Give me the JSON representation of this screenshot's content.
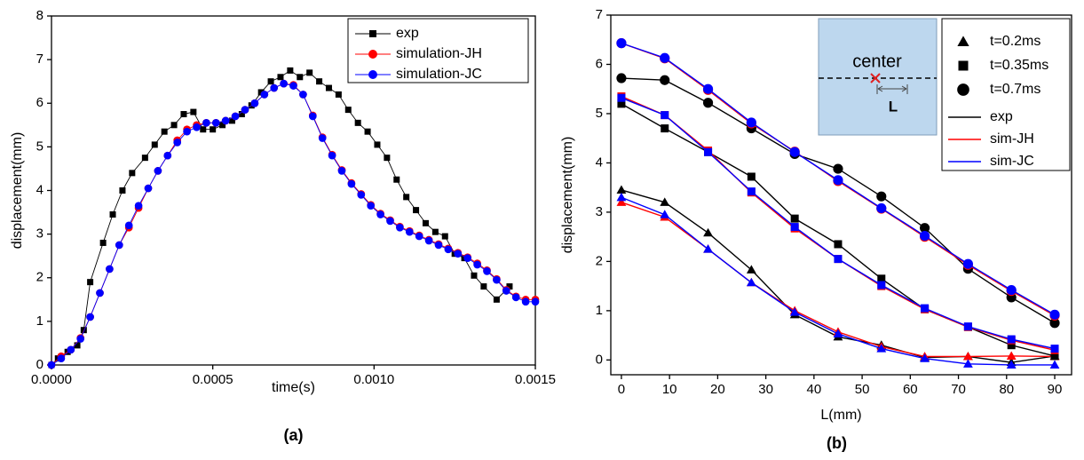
{
  "chart_data": [
    {
      "type": "line",
      "caption": "(a)",
      "xlabel": "time(s)",
      "ylabel": "displacement(mm)",
      "xlim": [
        0,
        0.0015
      ],
      "ylim": [
        0,
        8
      ],
      "xticks": [
        {
          "value": 0,
          "label": "0.0000"
        },
        {
          "value": 0.0005,
          "label": "0.0005"
        },
        {
          "value": 0.001,
          "label": "0.0010"
        },
        {
          "value": 0.0015,
          "label": "0.0015"
        }
      ],
      "yticks": [
        0,
        1,
        2,
        3,
        4,
        5,
        6,
        7,
        8
      ],
      "legend": "upper right",
      "series": [
        {
          "name": "exp",
          "color": "#000000",
          "marker": "square",
          "x": [
            0,
            2e-05,
            5e-05,
            8e-05,
            0.0001,
            0.00012,
            0.00016,
            0.00019,
            0.00022,
            0.00025,
            0.00029,
            0.00032,
            0.00035,
            0.00038,
            0.00041,
            0.00044,
            0.00047,
            0.0005,
            0.00053,
            0.00056,
            0.00059,
            0.00062,
            0.00065,
            0.00068,
            0.00071,
            0.00074,
            0.00077,
            0.0008,
            0.00083,
            0.00086,
            0.00089,
            0.00092,
            0.00095,
            0.00098,
            0.00101,
            0.00104,
            0.00107,
            0.0011,
            0.00113,
            0.00116,
            0.00119,
            0.00122,
            0.00125,
            0.00128,
            0.00131,
            0.00134,
            0.00138,
            0.00142
          ],
          "values": [
            0,
            0.15,
            0.3,
            0.45,
            0.8,
            1.9,
            2.8,
            3.45,
            4.0,
            4.4,
            4.75,
            5.05,
            5.35,
            5.5,
            5.75,
            5.8,
            5.4,
            5.4,
            5.5,
            5.6,
            5.75,
            5.95,
            6.25,
            6.5,
            6.6,
            6.75,
            6.6,
            6.7,
            6.5,
            6.35,
            6.2,
            5.85,
            5.55,
            5.35,
            5.05,
            4.75,
            4.25,
            3.85,
            3.55,
            3.25,
            3.05,
            2.95,
            2.55,
            2.45,
            2.05,
            1.8,
            1.5,
            1.8
          ]
        },
        {
          "name": "simulation-JH",
          "color": "#ff0000",
          "marker": "circle",
          "x": [
            0,
            3e-05,
            6e-05,
            9e-05,
            0.00012,
            0.00015,
            0.00018,
            0.00021,
            0.00024,
            0.00027,
            0.0003,
            0.00033,
            0.00036,
            0.00039,
            0.00042,
            0.00045,
            0.00048,
            0.00051,
            0.00054,
            0.00057,
            0.0006,
            0.00063,
            0.00066,
            0.00069,
            0.00072,
            0.00075,
            0.00078,
            0.00081,
            0.00084,
            0.00087,
            0.0009,
            0.00093,
            0.00096,
            0.00099,
            0.00102,
            0.00105,
            0.00108,
            0.00111,
            0.00114,
            0.00117,
            0.0012,
            0.00123,
            0.00126,
            0.00129,
            0.00132,
            0.00135,
            0.00138,
            0.00141,
            0.00144,
            0.00147,
            0.0015
          ],
          "values": [
            0,
            0.2,
            0.35,
            0.62,
            1.1,
            1.65,
            2.2,
            2.75,
            3.15,
            3.6,
            4.05,
            4.45,
            4.8,
            5.15,
            5.4,
            5.5,
            5.55,
            5.55,
            5.6,
            5.7,
            5.85,
            6.0,
            6.2,
            6.35,
            6.45,
            6.42,
            6.2,
            5.72,
            5.22,
            4.82,
            4.47,
            4.17,
            3.92,
            3.67,
            3.47,
            3.32,
            3.17,
            3.07,
            2.97,
            2.87,
            2.77,
            2.67,
            2.57,
            2.47,
            2.33,
            2.17,
            1.97,
            1.72,
            1.57,
            1.5,
            1.5
          ]
        },
        {
          "name": "simulation-JC",
          "color": "#0000ff",
          "marker": "circle",
          "x": [
            0,
            3e-05,
            6e-05,
            9e-05,
            0.00012,
            0.00015,
            0.00018,
            0.00021,
            0.00024,
            0.00027,
            0.0003,
            0.00033,
            0.00036,
            0.00039,
            0.00042,
            0.00045,
            0.00048,
            0.00051,
            0.00054,
            0.00057,
            0.0006,
            0.00063,
            0.00066,
            0.00069,
            0.00072,
            0.00075,
            0.00078,
            0.00081,
            0.00084,
            0.00087,
            0.0009,
            0.00093,
            0.00096,
            0.00099,
            0.00102,
            0.00105,
            0.00108,
            0.00111,
            0.00114,
            0.00117,
            0.0012,
            0.00123,
            0.00126,
            0.00129,
            0.00132,
            0.00135,
            0.00138,
            0.00141,
            0.00144,
            0.00147,
            0.0015
          ],
          "values": [
            0,
            0.15,
            0.35,
            0.6,
            1.1,
            1.65,
            2.2,
            2.75,
            3.2,
            3.65,
            4.05,
            4.45,
            4.8,
            5.1,
            5.35,
            5.45,
            5.55,
            5.55,
            5.6,
            5.7,
            5.85,
            6.0,
            6.2,
            6.35,
            6.45,
            6.4,
            6.2,
            5.7,
            5.2,
            4.8,
            4.45,
            4.15,
            3.9,
            3.65,
            3.45,
            3.3,
            3.15,
            3.05,
            2.95,
            2.85,
            2.75,
            2.65,
            2.55,
            2.45,
            2.3,
            2.15,
            1.95,
            1.7,
            1.55,
            1.45,
            1.45
          ]
        }
      ]
    },
    {
      "type": "line",
      "caption": "(b)",
      "xlabel": "L(mm)",
      "ylabel": "displacement(mm)",
      "xlim": [
        -2.2,
        93.5
      ],
      "ylim": [
        -0.3,
        7
      ],
      "xticks": [
        0,
        10,
        20,
        30,
        40,
        50,
        60,
        70,
        80,
        90
      ],
      "yticks": [
        0,
        1,
        2,
        3,
        4,
        5,
        6,
        7
      ],
      "legend": "upper right",
      "inset": {
        "label": "center",
        "dim_label": "L"
      },
      "x": [
        0,
        9,
        18,
        27,
        36,
        45,
        54,
        63,
        72,
        81,
        90
      ],
      "models": [
        {
          "name": "exp",
          "color": "#000000"
        },
        {
          "name": "sim-JH",
          "color": "#ff0000"
        },
        {
          "name": "sim-JC",
          "color": "#0000ff"
        }
      ],
      "groups": [
        {
          "label": "t=0.2ms",
          "marker": "triangle",
          "series": [
            [
              3.45,
              3.2,
              2.58,
              1.83,
              0.92,
              0.47,
              0.3,
              0.05,
              0.07,
              -0.05,
              0.08
            ],
            [
              3.2,
              2.9,
              2.25,
              1.57,
              1.0,
              0.57,
              0.27,
              0.07,
              0.07,
              0.08,
              0.07
            ],
            [
              3.3,
              2.95,
              2.25,
              1.57,
              0.97,
              0.53,
              0.23,
              0.03,
              -0.08,
              -0.1,
              -0.1
            ]
          ]
        },
        {
          "label": "t=0.35ms",
          "marker": "square",
          "series": [
            [
              5.2,
              4.7,
              4.22,
              3.72,
              2.87,
              2.35,
              1.65,
              1.03,
              0.67,
              0.3,
              0.08
            ],
            [
              5.35,
              4.97,
              4.25,
              3.4,
              2.67,
              2.05,
              1.5,
              1.03,
              0.67,
              0.4,
              0.2
            ],
            [
              5.32,
              4.97,
              4.22,
              3.42,
              2.7,
              2.05,
              1.52,
              1.05,
              0.68,
              0.42,
              0.23
            ]
          ]
        },
        {
          "label": "t=0.7ms",
          "marker": "circle",
          "series": [
            [
              5.72,
              5.68,
              5.22,
              4.7,
              4.18,
              3.88,
              3.32,
              2.68,
              1.85,
              1.27,
              0.75
            ],
            [
              6.43,
              6.12,
              5.48,
              4.8,
              4.23,
              3.63,
              3.07,
              2.5,
              1.93,
              1.4,
              0.9
            ],
            [
              6.43,
              6.13,
              5.5,
              4.82,
              4.22,
              3.65,
              3.08,
              2.52,
              1.95,
              1.42,
              0.92
            ]
          ]
        }
      ]
    }
  ]
}
